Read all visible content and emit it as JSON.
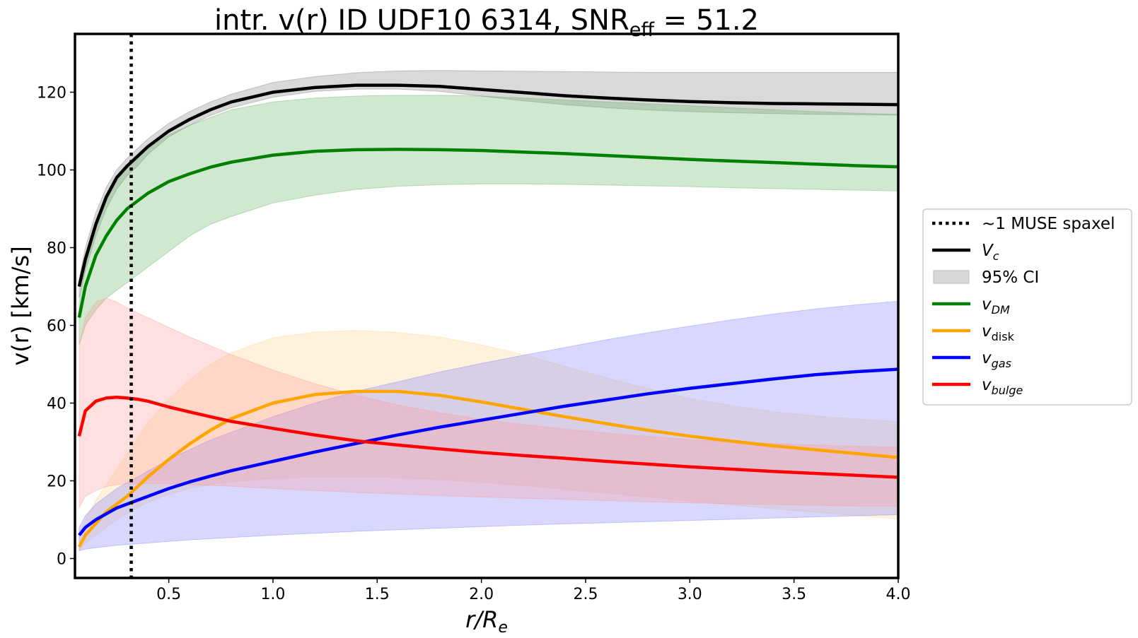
{
  "chart_data": {
    "type": "line",
    "title": {
      "main": "intr. v(r) ID UDF10 6314, SNR",
      "sub": "eff",
      "tail": " = 51.2"
    },
    "xlabel": {
      "base": "r/R",
      "sub": "e"
    },
    "ylabel": "v(r) [km/s]",
    "xlim": [
      0.05,
      4.0
    ],
    "ylim": [
      -5,
      135
    ],
    "xticks": [
      0.5,
      1.0,
      1.5,
      2.0,
      2.5,
      3.0,
      3.5,
      4.0
    ],
    "xtick_labels": [
      "0.5",
      "1.0",
      "1.5",
      "2.0",
      "2.5",
      "3.0",
      "3.5",
      "4.0"
    ],
    "yticks": [
      0,
      20,
      40,
      60,
      80,
      100,
      120
    ],
    "ytick_labels": [
      "0",
      "20",
      "40",
      "60",
      "80",
      "100",
      "120"
    ],
    "grid": false,
    "vline": {
      "x": 0.32,
      "label": "~1 MUSE spaxel",
      "color": "#000000"
    },
    "x": [
      0.07,
      0.1,
      0.15,
      0.2,
      0.25,
      0.3,
      0.35,
      0.4,
      0.5,
      0.6,
      0.7,
      0.8,
      1.0,
      1.2,
      1.4,
      1.6,
      1.8,
      2.0,
      2.2,
      2.4,
      2.6,
      2.8,
      3.0,
      3.2,
      3.4,
      3.6,
      3.8,
      4.0
    ],
    "series": [
      {
        "name": "V_c",
        "color": "#000000",
        "fill": "#808080",
        "values": [
          70,
          77,
          86,
          93,
          98,
          101,
          103.5,
          106,
          110,
          113,
          115.5,
          117.5,
          120,
          121.2,
          121.8,
          121.8,
          121.5,
          120.7,
          119.9,
          119.1,
          118.5,
          118.0,
          117.6,
          117.3,
          117.1,
          117.0,
          116.9,
          116.8
        ],
        "lower": [
          67,
          74,
          83,
          90,
          95,
          98.5,
          101,
          104,
          108.5,
          111.5,
          114,
          116,
          118.7,
          120.2,
          120.8,
          120.8,
          120.2,
          119.0,
          117.8,
          116.8,
          116.0,
          115.4,
          115.0,
          114.7,
          114.5,
          114.3,
          114.2,
          114.1
        ],
        "upper": [
          72,
          80,
          89,
          95.5,
          100,
          103,
          105.5,
          108,
          112,
          115,
          117.5,
          119.5,
          122.5,
          124,
          125,
          125.5,
          125.6,
          125.5,
          125.4,
          125.3,
          125.2,
          125.1,
          125.1,
          125.1,
          125.1,
          125.1,
          125.1,
          125.1
        ]
      },
      {
        "name": "v_DM",
        "color": "#008000",
        "fill": "#5fb35f",
        "values": [
          62,
          70,
          78,
          83,
          87,
          90,
          92,
          94,
          97,
          99,
          100.7,
          102,
          103.8,
          104.8,
          105.2,
          105.3,
          105.2,
          105.0,
          104.6,
          104.2,
          103.7,
          103.2,
          102.7,
          102.3,
          101.9,
          101.5,
          101.1,
          100.8
        ],
        "lower": [
          55,
          60,
          64,
          67,
          69,
          71,
          73,
          75,
          79,
          83,
          86,
          88,
          91.5,
          93.5,
          95,
          95.8,
          96.2,
          96.4,
          96.4,
          96.3,
          96.1,
          95.9,
          95.7,
          95.4,
          95.2,
          95.0,
          94.8,
          94.6
        ],
        "upper": [
          66,
          75,
          85,
          92,
          97,
          101,
          103.5,
          105.5,
          109,
          111.5,
          113.5,
          115.5,
          117.5,
          118.5,
          119,
          119.2,
          119.2,
          119.0,
          118.5,
          118.0,
          117.5,
          117.0,
          116.5,
          116.0,
          115.5,
          115.0,
          114.6,
          114.3
        ]
      },
      {
        "name": "v_disk",
        "color": "#ffa500",
        "fill": "#ffd48a",
        "values": [
          3,
          6,
          9,
          12,
          14,
          16,
          18.5,
          21,
          25.5,
          29.5,
          33,
          36,
          40,
          42.2,
          43,
          43,
          42,
          40.3,
          38.4,
          36.5,
          34.7,
          33,
          31.5,
          30.2,
          29,
          28,
          27,
          26
        ],
        "lower": [
          2,
          4,
          6,
          8,
          10,
          11.5,
          13,
          14.5,
          16.5,
          18,
          19,
          19.7,
          20.6,
          21.0,
          21.0,
          20.8,
          20.3,
          19.6,
          18.8,
          17.8,
          16.8,
          15.8,
          14.8,
          13.8,
          12.8,
          11.9,
          11.0,
          10.2
        ],
        "upper": [
          6,
          10,
          15,
          19,
          23,
          27,
          31,
          35,
          41,
          46,
          50,
          53,
          56.8,
          58.3,
          58.7,
          58.2,
          57,
          55,
          52.5,
          49.5,
          46.5,
          43.7,
          41.2,
          39.3,
          37.8,
          36.7,
          35.9,
          35.2
        ]
      },
      {
        "name": "v_gas",
        "color": "#0000ff",
        "fill": "#7f7fff",
        "values": [
          6,
          8,
          10,
          11.5,
          13,
          14,
          15,
          16,
          18,
          19.7,
          21.2,
          22.6,
          25,
          27.4,
          29.6,
          31.8,
          33.8,
          35.6,
          37.4,
          39.2,
          40.8,
          42.4,
          43.8,
          45.0,
          46.2,
          47.3,
          48.1,
          48.7
        ],
        "lower": [
          2,
          2.4,
          2.8,
          3.1,
          3.4,
          3.6,
          3.8,
          4.0,
          4.4,
          4.8,
          5.1,
          5.4,
          6.0,
          6.5,
          7.0,
          7.4,
          7.8,
          8.2,
          8.6,
          8.9,
          9.2,
          9.5,
          9.8,
          10.1,
          10.4,
          10.7,
          11.0,
          11.3
        ],
        "upper": [
          8,
          11,
          14,
          16,
          18,
          19.5,
          21,
          22.5,
          25.5,
          28,
          30.5,
          32.5,
          36.5,
          40,
          43,
          45.5,
          48,
          50.2,
          52.3,
          54.3,
          56.3,
          58.1,
          59.8,
          61.4,
          62.9,
          64.2,
          65.3,
          66.2
        ]
      },
      {
        "name": "v_bulge",
        "color": "#ff0000",
        "fill": "#ff9999",
        "values": [
          31.5,
          38,
          40.5,
          41.3,
          41.5,
          41.3,
          41,
          40.5,
          39,
          37.7,
          36.5,
          35.3,
          33.5,
          31.8,
          30.3,
          29.2,
          28.2,
          27.3,
          26.5,
          25.8,
          25.0,
          24.3,
          23.6,
          23.0,
          22.4,
          21.9,
          21.4,
          20.9
        ],
        "lower": [
          13,
          16,
          17.5,
          18.5,
          19,
          19.2,
          19.3,
          19.3,
          19.2,
          19,
          18.8,
          18.6,
          18,
          17.5,
          17.0,
          16.6,
          16.2,
          15.8,
          15.5,
          15.2,
          14.9,
          14.6,
          14.3,
          14.1,
          13.9,
          13.7,
          13.5,
          13.4
        ],
        "upper": [
          55,
          62,
          66,
          67,
          66,
          64.5,
          63.2,
          62,
          59.5,
          57,
          54.8,
          52.5,
          48.5,
          45,
          42,
          39.5,
          37.5,
          35.8,
          34.5,
          33.3,
          32.3,
          31.4,
          30.6,
          30.0,
          29.6,
          29.2,
          28.9,
          28.7
        ]
      }
    ],
    "legend": {
      "location": "center-right, outside plot",
      "entries": [
        {
          "kind": "dotted",
          "label": "~1 MUSE spaxel",
          "color": "#000000"
        },
        {
          "kind": "line",
          "label_base": "V",
          "label_sub": "c",
          "sub_italic": true,
          "color": "#000000"
        },
        {
          "kind": "patch",
          "label": "95% CI",
          "color": "#d7d7d7"
        },
        {
          "kind": "line",
          "label_base": "v",
          "label_sub": "DM",
          "sub_italic": true,
          "color": "#008000"
        },
        {
          "kind": "line",
          "label_base": "v",
          "label_sub": "disk",
          "sub_italic": false,
          "color": "#ffa500"
        },
        {
          "kind": "line",
          "label_base": "v",
          "label_sub": "gas",
          "sub_italic": true,
          "color": "#0000ff"
        },
        {
          "kind": "line",
          "label_base": "v",
          "label_sub": "bulge",
          "sub_italic": true,
          "color": "#ff0000"
        }
      ]
    }
  }
}
